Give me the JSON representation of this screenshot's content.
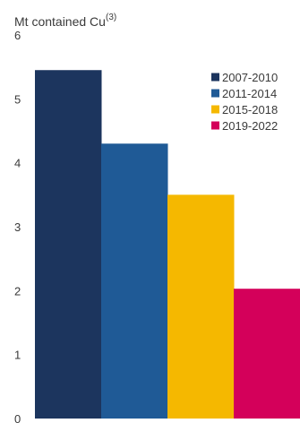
{
  "chart_data": {
    "type": "bar",
    "title": "",
    "xlabel": "",
    "ylabel": "Mt contained Cu",
    "ylabel_superscript": "(3)",
    "ylim": [
      0,
      6
    ],
    "yticks": [
      "0",
      "1",
      "2",
      "3",
      "4",
      "5",
      "6"
    ],
    "categories": [
      "2007-2010",
      "2011-2014",
      "2015-2018",
      "2019-2022"
    ],
    "values": [
      5.45,
      4.3,
      3.5,
      2.03
    ],
    "colors": [
      "#1c355e",
      "#1f5a96",
      "#f5b800",
      "#d4005a"
    ],
    "legend": {
      "position": "top-right",
      "items": [
        "2007-2010",
        "2011-2014",
        "2015-2018",
        "2019-2022"
      ]
    },
    "grid": false
  }
}
